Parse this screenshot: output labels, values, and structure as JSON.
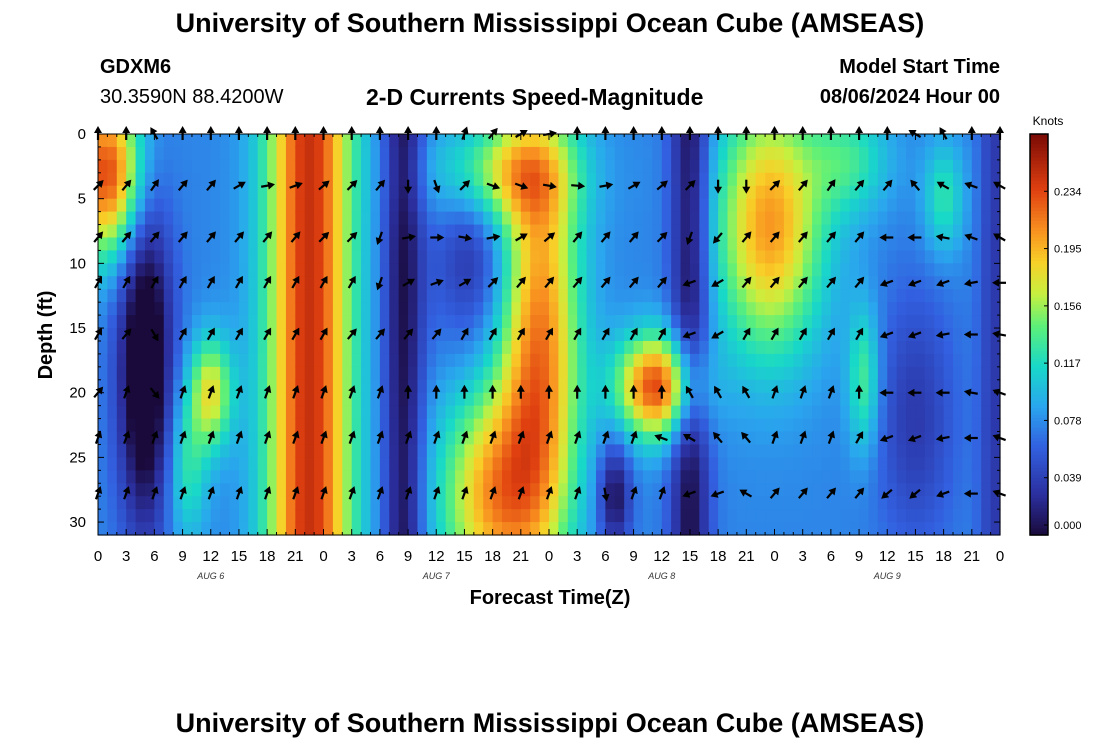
{
  "header": {
    "title": "University of Southern Mississippi Ocean Cube (AMSEAS)",
    "station_id": "GDXM6",
    "coordinates": "30.3590N  88.4200W",
    "subtitle": "2-D Currents Speed-Magnitude",
    "model_start_label": "Model Start Time",
    "model_start_value": "08/06/2024 Hour 00"
  },
  "footer": {
    "title": "University of Southern Mississippi Ocean Cube (AMSEAS)"
  },
  "chart_data": {
    "type": "heatmap",
    "title": "2-D Currents Speed-Magnitude",
    "xlabel": "Forecast Time(Z)",
    "ylabel": "Depth (ft)",
    "x_range_hours": [
      0,
      96
    ],
    "y_range_ft": [
      0,
      31
    ],
    "x_tick_labels": [
      "0",
      "3",
      "6",
      "9",
      "12",
      "15",
      "18",
      "21",
      "0",
      "3",
      "6",
      "9",
      "12",
      "15",
      "18",
      "21",
      "0",
      "3",
      "6",
      "9",
      "12",
      "15",
      "18",
      "21",
      "0",
      "3",
      "6",
      "9",
      "12",
      "15",
      "18",
      "21",
      "0"
    ],
    "y_ticks": [
      0,
      5,
      10,
      15,
      20,
      25,
      30
    ],
    "date_labels": [
      {
        "label": "AUG 6",
        "hour": 12
      },
      {
        "label": "AUG 7",
        "hour": 36
      },
      {
        "label": "AUG 8",
        "hour": 60
      },
      {
        "label": "AUG 9",
        "hour": 84
      }
    ],
    "colorbar": {
      "title": "Knots",
      "min": 0.0,
      "max": 0.273,
      "ticks": [
        "0.234",
        "0.195",
        "0.156",
        "0.117",
        "0.078",
        "0.039",
        "0.000"
      ],
      "tick_values": [
        0.234,
        0.195,
        0.156,
        0.117,
        0.078,
        0.039,
        0.0
      ]
    },
    "speed_knots_approx": [
      {
        "hours": "0-4",
        "depth_ft": "0-8",
        "value": 0.22
      },
      {
        "hours": "18-27",
        "depth_ft": "0-31",
        "value": 0.23
      },
      {
        "hours": "31-34",
        "depth_ft": "0-31",
        "value": 0.02
      },
      {
        "hours": "37-49",
        "depth_ft": "18-31",
        "value": 0.19
      },
      {
        "hours": "45-50",
        "depth_ft": "0-31",
        "value": 0.21
      },
      {
        "hours": "56-63",
        "depth_ft": "17-22",
        "value": 0.23
      },
      {
        "hours": "54-56",
        "depth_ft": "26-31",
        "value": 0.01
      },
      {
        "hours": "62-64",
        "depth_ft": "0-31",
        "value": 0.02
      },
      {
        "hours": "68-77",
        "depth_ft": "0-14",
        "value": 0.17
      },
      {
        "hours": "11-13",
        "depth_ft": "17-23",
        "value": 0.17
      },
      {
        "hours": "82-84",
        "depth_ft": "16-22",
        "value": 0.15
      }
    ],
    "vector_depths_ft": [
      0,
      4,
      8,
      11.5,
      15.5,
      20,
      23.5,
      27.8
    ],
    "vector_hours": [
      0,
      3,
      6,
      9,
      12,
      15,
      18,
      21,
      24,
      27,
      30,
      33,
      36,
      39,
      42,
      45,
      48,
      51,
      54,
      57,
      60,
      63,
      66,
      69,
      72,
      75,
      78,
      81,
      84,
      87,
      90,
      93,
      96
    ],
    "vector_directions_deg": [
      [
        0,
        0,
        330,
        0,
        0,
        0,
        0,
        0,
        0,
        0,
        0,
        0,
        0,
        20,
        40,
        60,
        80,
        0,
        0,
        0,
        0,
        0,
        0,
        0,
        0,
        0,
        0,
        0,
        0,
        300,
        330,
        0,
        0
      ],
      [
        45,
        40,
        35,
        40,
        40,
        60,
        80,
        70,
        50,
        45,
        40,
        180,
        160,
        45,
        110,
        110,
        100,
        95,
        80,
        60,
        50,
        45,
        180,
        180,
        45,
        40,
        35,
        40,
        40,
        320,
        300,
        290,
        300
      ],
      [
        40,
        40,
        40,
        40,
        40,
        40,
        40,
        40,
        45,
        45,
        200,
        80,
        90,
        100,
        80,
        60,
        50,
        40,
        40,
        40,
        45,
        200,
        220,
        40,
        40,
        40,
        40,
        40,
        270,
        270,
        280,
        290,
        300
      ],
      [
        30,
        30,
        30,
        30,
        30,
        30,
        30,
        30,
        30,
        30,
        200,
        60,
        70,
        60,
        45,
        40,
        40,
        40,
        40,
        40,
        40,
        250,
        240,
        40,
        40,
        40,
        40,
        40,
        250,
        250,
        250,
        260,
        270
      ],
      [
        30,
        40,
        150,
        30,
        30,
        30,
        30,
        30,
        30,
        40,
        40,
        40,
        40,
        30,
        30,
        30,
        30,
        30,
        30,
        30,
        30,
        250,
        240,
        30,
        30,
        30,
        30,
        30,
        250,
        250,
        260,
        270,
        280
      ],
      [
        40,
        20,
        140,
        20,
        20,
        20,
        20,
        20,
        20,
        20,
        20,
        0,
        0,
        0,
        0,
        0,
        0,
        0,
        0,
        0,
        0,
        330,
        330,
        330,
        20,
        20,
        20,
        0,
        270,
        270,
        270,
        280,
        290
      ],
      [
        20,
        20,
        20,
        20,
        20,
        20,
        20,
        20,
        20,
        20,
        20,
        20,
        20,
        20,
        20,
        20,
        20,
        20,
        20,
        20,
        290,
        300,
        320,
        320,
        20,
        20,
        20,
        30,
        250,
        250,
        260,
        270,
        290
      ],
      [
        20,
        20,
        20,
        20,
        20,
        20,
        20,
        20,
        20,
        20,
        20,
        20,
        20,
        20,
        20,
        20,
        20,
        20,
        170,
        20,
        20,
        250,
        250,
        300,
        40,
        40,
        40,
        40,
        230,
        230,
        250,
        270,
        290
      ]
    ]
  }
}
